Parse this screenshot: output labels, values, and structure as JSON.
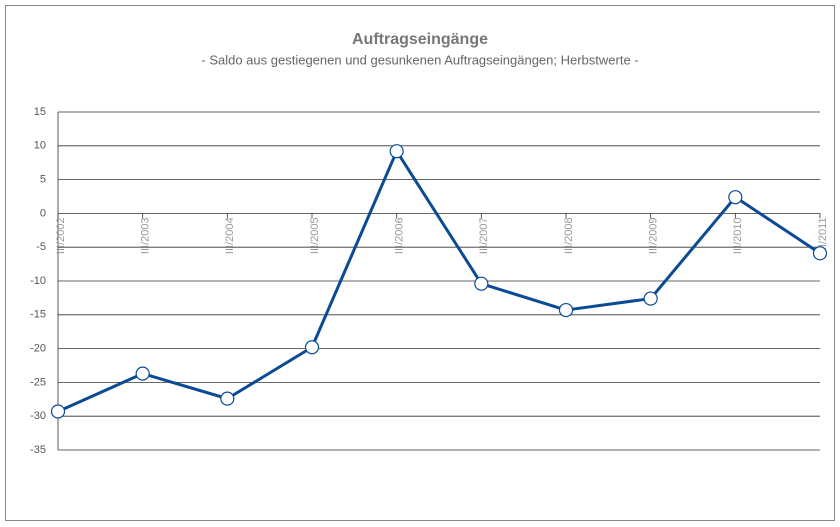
{
  "chart_data": {
    "type": "line",
    "title": "Auftragseingänge",
    "subtitle": "- Saldo aus gestiegenen und gesunkenen Auftragseingängen; Herbstwerte -",
    "categories": [
      "III/2002",
      "III/2003",
      "III/2004",
      "III/2005",
      "III/2006",
      "III/2007",
      "III/2008",
      "III/2009",
      "III/2010",
      "III/2011"
    ],
    "series": [
      {
        "name": "Auftragseingänge",
        "color": "#0b4a94",
        "values": [
          -29.3,
          -23.7,
          -27.4,
          -19.8,
          9.2,
          -10.4,
          -14.3,
          -12.6,
          2.4,
          -5.9
        ]
      }
    ],
    "ylim": [
      -35,
      15
    ],
    "yticks": [
      -35,
      -30,
      -25,
      -20,
      -15,
      -10,
      -5,
      0,
      5,
      10,
      15
    ],
    "grid": true
  }
}
